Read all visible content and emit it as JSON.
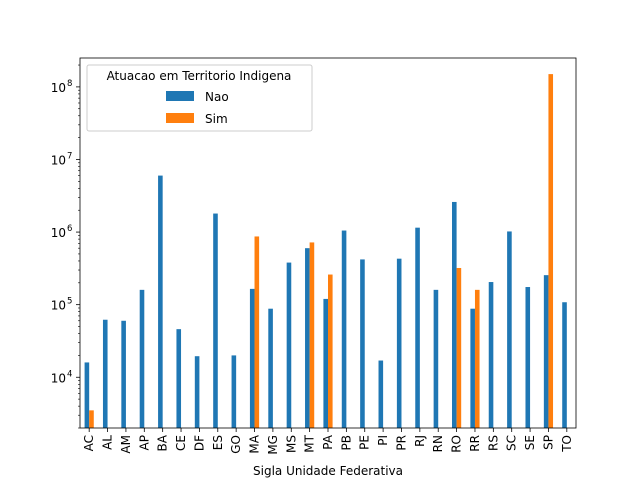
{
  "chart_data": {
    "type": "bar",
    "xlabel": "Sigla Unidade Federativa",
    "ylabel": "",
    "yscale": "log",
    "ylim": [
      2000,
      250000000
    ],
    "yticks": [
      {
        "value": 10000,
        "base": "10",
        "exp": "4"
      },
      {
        "value": 100000,
        "base": "10",
        "exp": "5"
      },
      {
        "value": 1000000,
        "base": "10",
        "exp": "6"
      },
      {
        "value": 10000000,
        "base": "10",
        "exp": "7"
      },
      {
        "value": 100000000,
        "base": "10",
        "exp": "8"
      }
    ],
    "categories": [
      "AC",
      "AL",
      "AM",
      "AP",
      "BA",
      "CE",
      "DF",
      "ES",
      "GO",
      "MA",
      "MG",
      "MS",
      "MT",
      "PA",
      "PB",
      "PE",
      "PI",
      "PR",
      "RJ",
      "RN",
      "RO",
      "RR",
      "RS",
      "SC",
      "SE",
      "SP",
      "TO"
    ],
    "legend": {
      "title": "Atuacao em Territorio Indigena",
      "position": "upper-left"
    },
    "series": [
      {
        "name": "Nao",
        "color": "#1f77b4",
        "values": [
          16000,
          62000,
          60000,
          160000,
          6000000,
          46000,
          19500,
          1800000,
          20000,
          165000,
          88000,
          380000,
          600000,
          120000,
          1050000,
          420000,
          17000,
          430000,
          1150000,
          160000,
          2600000,
          88000,
          205000,
          1020000,
          175000,
          255000,
          108000
        ]
      },
      {
        "name": "Sim",
        "color": "#ff7f0e",
        "values": [
          3500,
          null,
          null,
          null,
          null,
          null,
          null,
          null,
          null,
          870000,
          null,
          null,
          720000,
          260000,
          null,
          null,
          null,
          null,
          null,
          null,
          320000,
          160000,
          null,
          null,
          null,
          150000000,
          null
        ]
      }
    ]
  }
}
